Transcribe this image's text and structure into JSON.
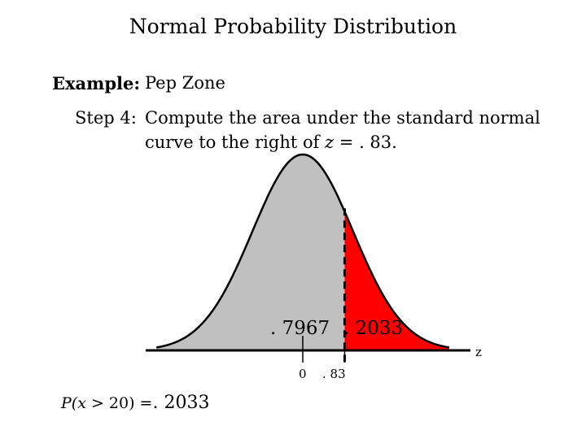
{
  "title": "Normal Probability Distribution",
  "example": {
    "label": "Example:",
    "value": "Pep Zone"
  },
  "step": {
    "label": "Step 4:",
    "line1": "Compute the area under the standard normal",
    "line2_prefix": "curve to the right of ",
    "line2_var": "z",
    "line2_suffix": " = . 83."
  },
  "diagram": {
    "left_area_label": ". 7967",
    "right_area_label": ". 2033",
    "axis_label": "z",
    "tick_zero_label": "0",
    "tick_z_label": ". 83",
    "z_value": 0.83,
    "left_area_color": "#c0c0c0",
    "right_area_color": "#ff0000"
  },
  "result": {
    "prefix": "P(",
    "var": "x",
    "middle": " > 20) =",
    "value": ". 2033"
  }
}
